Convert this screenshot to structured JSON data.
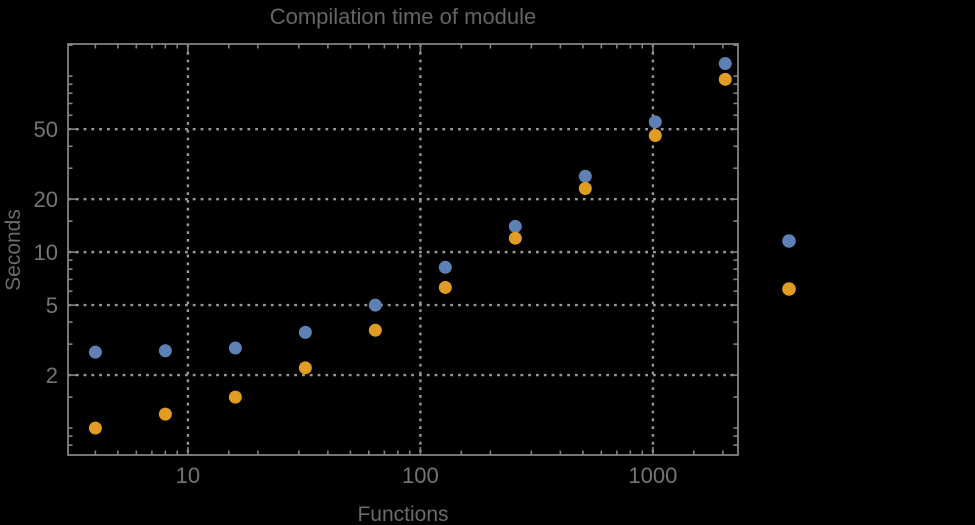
{
  "page": {
    "background": "#000000"
  },
  "chart_data": {
    "type": "scatter",
    "title": "Compilation time of module",
    "xlabel": "Functions",
    "ylabel": "Seconds",
    "x_scale": "log",
    "y_scale": "log",
    "xlim": [
      3.05,
      2323
    ],
    "ylim": [
      0.703,
      152.4
    ],
    "grid": "dotted, on major ticks only",
    "legend_position": "outside-right-center",
    "x": [
      4,
      8,
      16,
      32,
      64,
      128,
      256,
      512,
      1024,
      2048
    ],
    "series": [
      {
        "name": "series-1-blue",
        "color": "#5e81b5",
        "values": [
          2.7,
          2.75,
          2.85,
          3.5,
          5.0,
          8.2,
          14,
          27,
          55,
          118
        ]
      },
      {
        "name": "series-2-orange",
        "color": "#e19c24",
        "values": [
          1.0,
          1.2,
          1.5,
          2.2,
          3.6,
          6.3,
          12,
          23,
          46,
          96
        ]
      }
    ],
    "x_ticks": {
      "major": [
        10,
        100,
        1000
      ],
      "labels": [
        "10",
        "100",
        "1000"
      ],
      "minor": [
        4,
        5,
        6,
        7,
        8,
        9,
        15,
        20,
        30,
        40,
        50,
        60,
        70,
        80,
        90,
        150,
        200,
        300,
        400,
        500,
        600,
        700,
        800,
        900,
        1500,
        2000
      ]
    },
    "y_ticks": {
      "major": [
        2,
        5,
        10,
        20,
        50
      ],
      "labels": [
        "2",
        "5",
        "10",
        "20",
        "50"
      ],
      "minor": [
        0.8,
        0.9,
        1,
        1.5,
        3,
        4,
        6,
        7,
        8,
        9,
        15,
        30,
        40,
        60,
        70,
        80,
        90,
        100,
        150
      ]
    },
    "legend": {
      "markers": [
        {
          "name": "legend-marker-series-1",
          "color": "#5e81b5"
        },
        {
          "name": "legend-marker-series-2",
          "color": "#e19c24"
        }
      ]
    },
    "style": {
      "frame_color": "#828282",
      "grid_color": "#989898",
      "tick_label_color": "#757575",
      "title_color": "#646464",
      "axis_label_color": "#6b6b6b",
      "marker_radius": 6.5
    }
  }
}
